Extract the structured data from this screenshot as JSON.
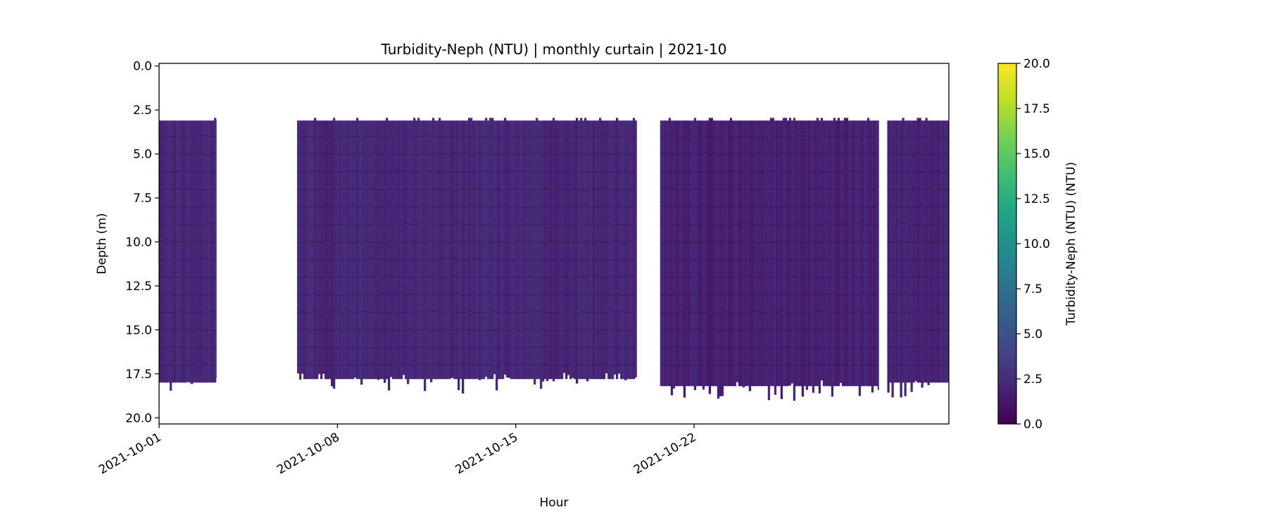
{
  "chart_data": {
    "type": "heatmap",
    "title": "Turbidity-Neph (NTU) | monthly curtain | 2021-10",
    "xlabel": "Hour",
    "ylabel": "Depth (m)",
    "x_range": [
      "2021-10-01",
      "2021-11-01"
    ],
    "y_range": [
      20.0,
      0.0
    ],
    "y_inverted": true,
    "x_ticks": [
      "2021-10-01",
      "2021-10-08",
      "2021-10-15",
      "2021-10-22"
    ],
    "y_ticks": [
      "0.0",
      "2.5",
      "5.0",
      "7.5",
      "10.0",
      "12.5",
      "15.0",
      "17.5",
      "20.0"
    ],
    "colorbar": {
      "label": "Turbidity-Neph (NTU) (NTU)",
      "colormap": "viridis",
      "range": [
        0,
        20
      ],
      "ticks": [
        "0.0",
        "2.5",
        "5.0",
        "7.5",
        "10.0",
        "12.5",
        "15.0",
        "17.5",
        "20.0"
      ]
    },
    "sensor_depths_m": [
      4,
      5,
      6,
      7,
      8,
      9,
      10,
      11,
      12,
      13,
      14,
      15,
      16,
      17
    ],
    "segments": [
      {
        "start": "2021-10-01 00:00",
        "end": "2021-10-03 06:00",
        "top_depth": 3.1,
        "bottom_depth": 18.0,
        "typical_value": 2.3
      },
      {
        "start": "2021-10-06 10:00",
        "end": "2021-10-19 18:00",
        "top_depth": 3.1,
        "bottom_depth": 17.8,
        "typical_value": 2.2
      },
      {
        "start": "2021-10-20 16:00",
        "end": "2021-10-29 06:00",
        "top_depth": 3.1,
        "bottom_depth": 18.2,
        "typical_value": 1.8
      },
      {
        "start": "2021-10-29 14:00",
        "end": "2021-11-01 00:00",
        "top_depth": 3.1,
        "bottom_depth": 18.0,
        "typical_value": 2.1
      }
    ],
    "grid": false
  }
}
